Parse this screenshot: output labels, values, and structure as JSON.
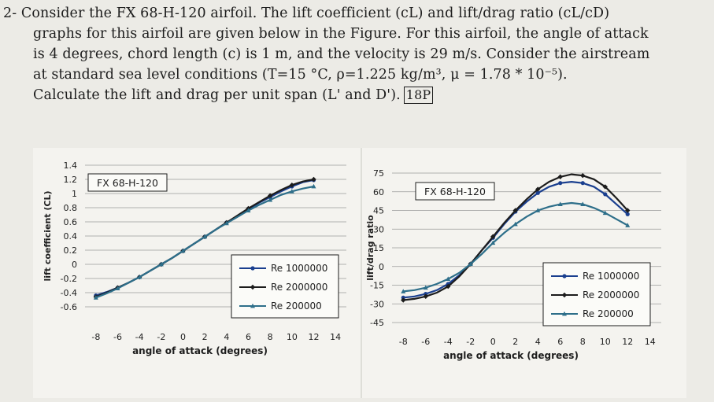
{
  "problem": {
    "number": "2-",
    "lines": [
      "Consider the FX 68-H-120 airfoil. The lift coefficient (cL) and lift/drag ratio (cL/cD)",
      "graphs for this airfoil are given below in the Figure. For this airfoil, the angle of attack",
      "is 4 degrees, chord length (c) is 1 m, and the velocity is 29 m/s. Consider the airstream",
      "at standard sea level conditions (T=15 °C, ρ=1.225 kg/m³, μ = 1.78 * 10⁻⁵).",
      "Calculate the lift and drag per unit span (L' and D')."
    ],
    "marks": "18P"
  },
  "colors": {
    "re_1000000": "#1a3f8f",
    "re_2000000": "#1c1c1c",
    "re_200000": "#2e6f8a"
  },
  "chart_data": [
    {
      "type": "line",
      "title": "FX 68-H-120",
      "xlabel": "angle of attack (degrees)",
      "ylabel": "lift coefficient (CL)",
      "xlim": [
        -9,
        15
      ],
      "ylim": [
        -0.6,
        1.4
      ],
      "x_ticks": [
        "-8",
        "-6",
        "-4",
        "-2",
        "0",
        "2",
        "4",
        "6",
        "8",
        "10",
        "12",
        "14"
      ],
      "y_ticks": [
        "1.4",
        "1.2",
        "1",
        "0.8",
        "0.6",
        "0.4",
        "0.2",
        "0",
        "-0.2",
        "-0.4",
        "-0.6"
      ],
      "grid": true,
      "legend": "bottom-right",
      "series": [
        {
          "name": "Re 1000000",
          "x": [
            -8,
            -7,
            -6,
            -5,
            -4,
            -3,
            -2,
            -1,
            0,
            1,
            2,
            3,
            4,
            5,
            6,
            7,
            8,
            9,
            10,
            11,
            12
          ],
          "y": [
            -0.44,
            -0.39,
            -0.33,
            -0.26,
            -0.18,
            -0.09,
            0.0,
            0.09,
            0.19,
            0.29,
            0.39,
            0.49,
            0.59,
            0.68,
            0.78,
            0.87,
            0.95,
            1.03,
            1.1,
            1.16,
            1.19
          ]
        },
        {
          "name": "Re 2000000",
          "x": [
            -8,
            -7,
            -6,
            -5,
            -4,
            -3,
            -2,
            -1,
            0,
            1,
            2,
            3,
            4,
            5,
            6,
            7,
            8,
            9,
            10,
            11,
            12
          ],
          "y": [
            -0.46,
            -0.4,
            -0.33,
            -0.26,
            -0.18,
            -0.09,
            0.0,
            0.09,
            0.19,
            0.29,
            0.39,
            0.49,
            0.59,
            0.69,
            0.79,
            0.88,
            0.97,
            1.05,
            1.12,
            1.17,
            1.2
          ]
        },
        {
          "name": "Re 200000",
          "x": [
            -8,
            -7,
            -6,
            -5,
            -4,
            -3,
            -2,
            -1,
            0,
            1,
            2,
            3,
            4,
            5,
            6,
            7,
            8,
            9,
            10,
            11,
            12
          ],
          "y": [
            -0.47,
            -0.41,
            -0.34,
            -0.26,
            -0.18,
            -0.09,
            0.0,
            0.09,
            0.19,
            0.29,
            0.39,
            0.49,
            0.58,
            0.67,
            0.76,
            0.84,
            0.91,
            0.98,
            1.03,
            1.07,
            1.1
          ]
        }
      ]
    },
    {
      "type": "line",
      "title": "FX 68-H-120",
      "xlabel": "angle of attack (degrees)",
      "ylabel": "lift/drag ratio",
      "xlim": [
        -9,
        15
      ],
      "ylim": [
        -45,
        75
      ],
      "x_ticks": [
        "-8",
        "-6",
        "-4",
        "-2",
        "0",
        "2",
        "4",
        "6",
        "8",
        "10",
        "12",
        "14"
      ],
      "y_ticks": [
        "75",
        "60",
        "45",
        "30",
        "15",
        "0",
        "-15",
        "-30",
        "-45"
      ],
      "grid": true,
      "legend": "bottom-right",
      "series": [
        {
          "name": "Re 1000000",
          "x": [
            -8,
            -7,
            -6,
            -5,
            -4,
            -3,
            -2,
            -1,
            0,
            1,
            2,
            3,
            4,
            5,
            6,
            7,
            8,
            9,
            10,
            11,
            12
          ],
          "y": [
            -25,
            -24,
            -22,
            -19,
            -14,
            -7,
            2,
            13,
            23,
            34,
            44,
            52,
            59,
            64,
            67,
            68,
            67,
            64,
            58,
            50,
            42
          ]
        },
        {
          "name": "Re 2000000",
          "x": [
            -8,
            -7,
            -6,
            -5,
            -4,
            -3,
            -2,
            -1,
            0,
            1,
            2,
            3,
            4,
            5,
            6,
            7,
            8,
            9,
            10,
            11,
            12
          ],
          "y": [
            -27,
            -26,
            -24,
            -21,
            -16,
            -8,
            2,
            13,
            24,
            35,
            45,
            54,
            62,
            68,
            72,
            74,
            73,
            70,
            64,
            55,
            45
          ]
        },
        {
          "name": "Re 200000",
          "x": [
            -8,
            -7,
            -6,
            -5,
            -4,
            -3,
            -2,
            -1,
            0,
            1,
            2,
            3,
            4,
            5,
            6,
            7,
            8,
            9,
            10,
            11,
            12
          ],
          "y": [
            -20,
            -19,
            -17,
            -14,
            -10,
            -5,
            2,
            10,
            19,
            27,
            34,
            40,
            45,
            48,
            50,
            51,
            50,
            47,
            43,
            38,
            33
          ]
        }
      ]
    }
  ]
}
